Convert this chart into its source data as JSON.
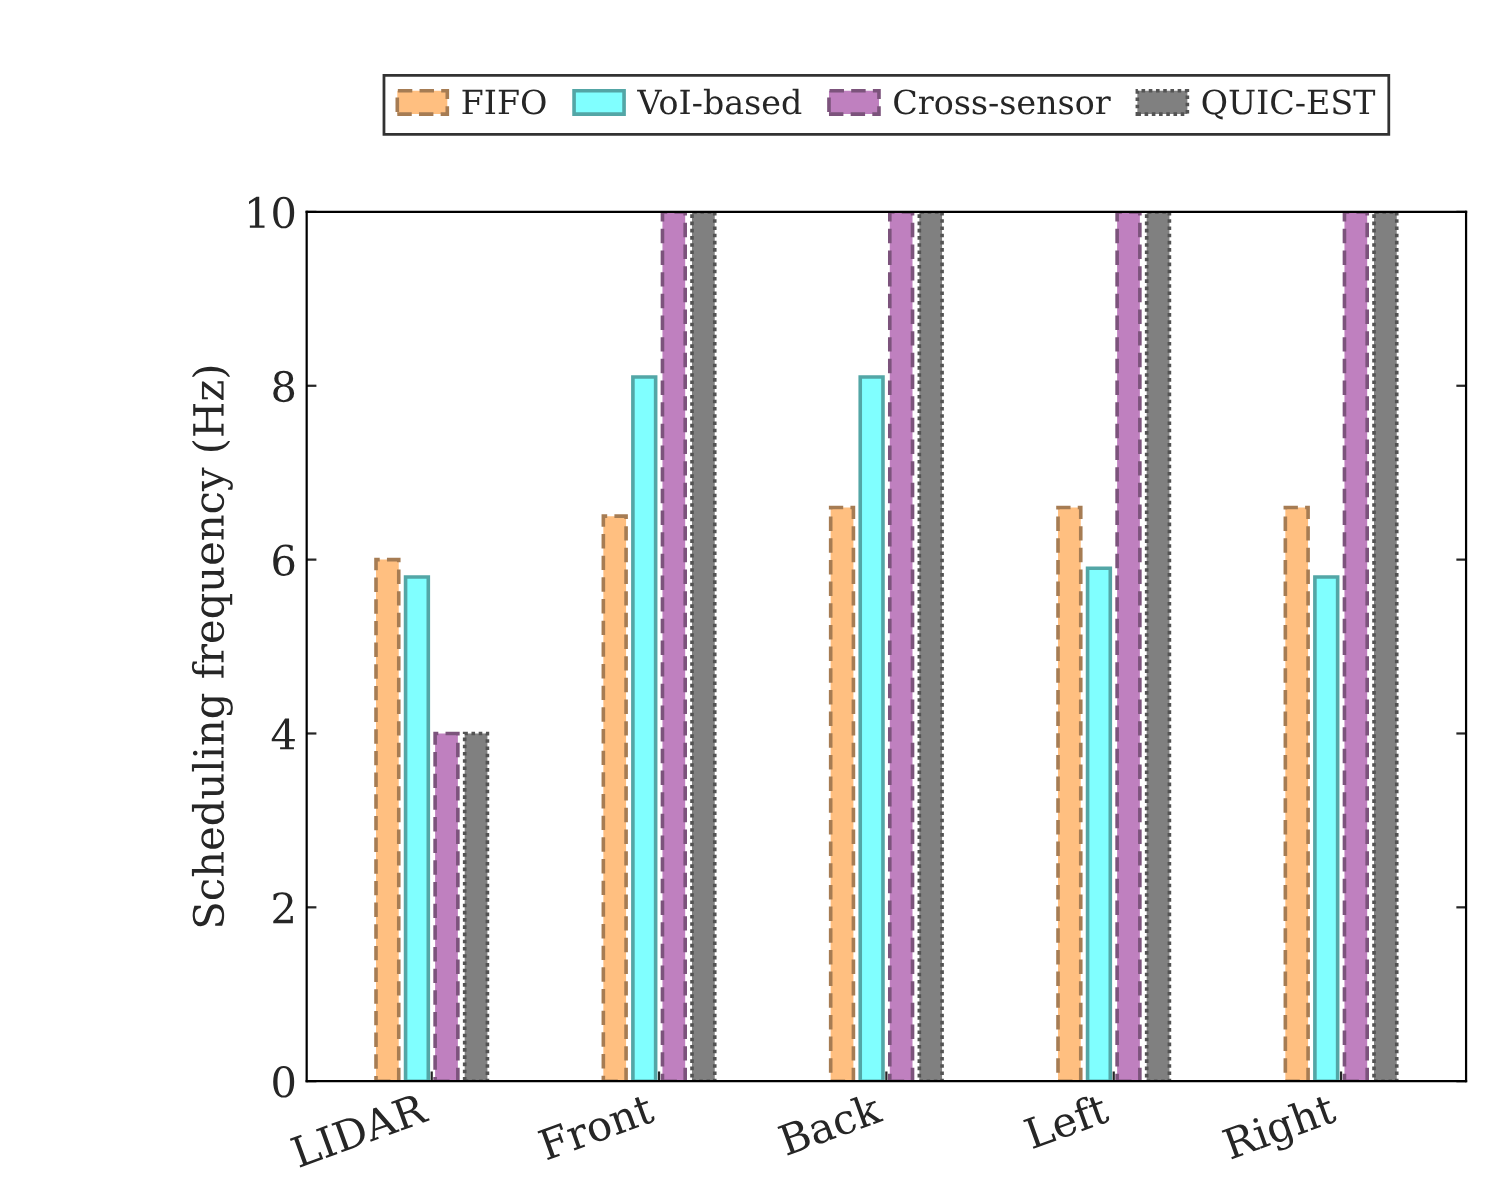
{
  "chart_data": {
    "type": "bar",
    "ylabel": "Scheduling frequency (Hz)",
    "categories": [
      "LIDAR",
      "Front",
      "Back",
      "Left",
      "Right"
    ],
    "series": [
      {
        "name": "FIFO",
        "color": "#ffbf80",
        "line_style": "dashed",
        "values": [
          6.0,
          6.5,
          6.6,
          6.6,
          6.6
        ]
      },
      {
        "name": "VoI-based",
        "color": "#80ffff",
        "line_style": "solid",
        "values": [
          5.8,
          8.1,
          8.1,
          5.9,
          5.8
        ]
      },
      {
        "name": "Cross-sensor",
        "color": "#bf80bf",
        "line_style": "dashed",
        "values": [
          4,
          10,
          10,
          10,
          10
        ]
      },
      {
        "name": "QUIC-EST",
        "color": "#808080",
        "line_style": "dotted",
        "values": [
          4,
          10,
          10,
          10,
          10
        ]
      }
    ],
    "ylim": [
      0,
      10
    ],
    "yticks": [
      0,
      2,
      4,
      6,
      8,
      10
    ],
    "legend": "top",
    "grid": false
  }
}
